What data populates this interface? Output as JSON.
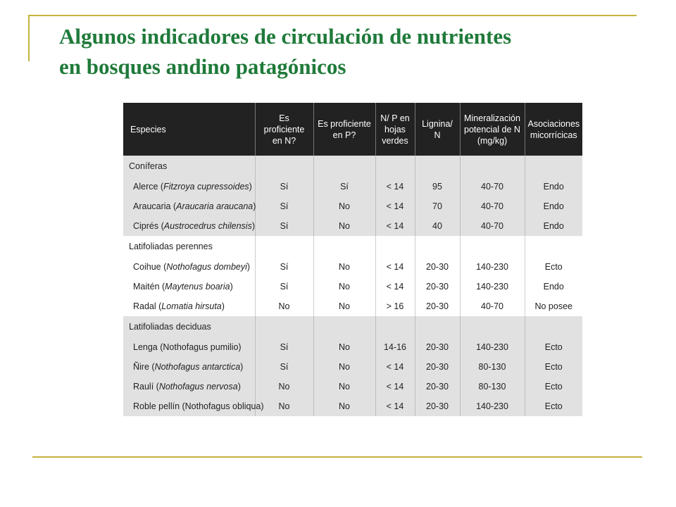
{
  "slide": {
    "title_line1": "Algunos indicadores de circulación de nutrientes",
    "title_line2": "en bosques andino patagónicos"
  },
  "table": {
    "headers": {
      "species": "Especies",
      "n_proficient": "Es proficiente en N?",
      "p_proficient": "Es proficiente en P?",
      "np_ratio": "N/ P en hojas verdes",
      "lignin_n": "Lignina/ N",
      "mineralization": "Mineralización potencial de N (mg/kg)",
      "mycorrhiza": "Asociaciones micorrícicas"
    },
    "groups": [
      {
        "name": "Coníferas",
        "rows": [
          {
            "common": "Alerce (",
            "sci": "Fitzroya cupressoides",
            "close": ")",
            "n": "Sí",
            "p": "Sí",
            "np": "< 14",
            "lig": "95",
            "min": "40-70",
            "myc": "Endo"
          },
          {
            "common": "Araucaria (",
            "sci": "Araucaria araucana",
            "close": ")",
            "n": "Sí",
            "p": "No",
            "np": "< 14",
            "lig": "70",
            "min": "40-70",
            "myc": "Endo"
          },
          {
            "common": "Ciprés (",
            "sci": "Austrocedrus chilensis",
            "close": ")",
            "n": "Sí",
            "p": "No",
            "np": "< 14",
            "lig": "40",
            "min": "40-70",
            "myc": "Endo"
          }
        ]
      },
      {
        "name": "Latifoliadas perennes",
        "rows": [
          {
            "common": "Coihue (",
            "sci": "Nothofagus dombeyi",
            "close": ")",
            "n": "Sí",
            "p": "No",
            "np": "< 14",
            "lig": "20-30",
            "min": "140-230",
            "myc": "Ecto"
          },
          {
            "common": "Maitén (",
            "sci": "Maytenus boaria",
            "close": ")",
            "n": "Sí",
            "p": "No",
            "np": "< 14",
            "lig": "20-30",
            "min": "140-230",
            "myc": "Endo"
          },
          {
            "common": "Radal (",
            "sci": "Lomatia hirsuta",
            "close": ")",
            "n": "No",
            "p": "No",
            "np": "> 16",
            "lig": "20-30",
            "min": "40-70",
            "myc": "No posee"
          }
        ]
      },
      {
        "name": "Latifoliadas deciduas",
        "rows": [
          {
            "common": "Lenga (Nothofagus pumilio)",
            "sci": "",
            "close": "",
            "n": "Sí",
            "p": "No",
            "np": "14-16",
            "lig": "20-30",
            "min": "140-230",
            "myc": "Ecto"
          },
          {
            "common": "Ñire (",
            "sci": "Nothofagus antarctica",
            "close": ")",
            "n": "Sí",
            "p": "No",
            "np": "< 14",
            "lig": "20-30",
            "min": "80-130",
            "myc": "Ecto"
          },
          {
            "common": "Raulí (",
            "sci": "Nothofagus nervosa",
            "close": ")",
            "n": "No",
            "p": "No",
            "np": "< 14",
            "lig": "20-30",
            "min": "80-130",
            "myc": "Ecto"
          },
          {
            "common": "Roble pellín (Nothofagus obliqua)",
            "sci": "",
            "close": "",
            "n": "No",
            "p": "No",
            "np": "< 14",
            "lig": "20-30",
            "min": "140-230",
            "myc": "Ecto"
          }
        ]
      }
    ]
  },
  "colors": {
    "title": "#1f7a3a",
    "frame": "#c5b33f",
    "header_bg": "#222222",
    "gray_band": "#e1e1e1"
  }
}
